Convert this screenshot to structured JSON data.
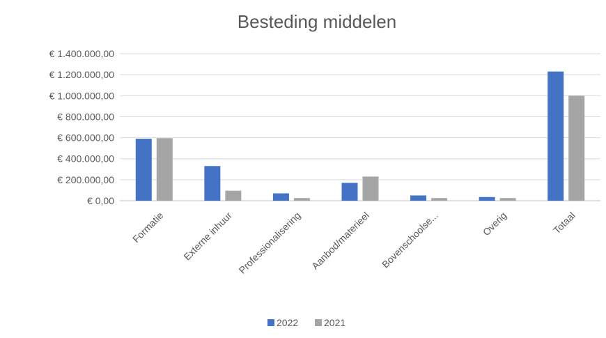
{
  "chart_data": {
    "type": "bar",
    "title": "Besteding middelen",
    "xlabel": "",
    "ylabel": "",
    "categories": [
      "Formatie",
      "Externe inhuur",
      "Professionalisering",
      "Aanbod/materieel",
      "Bovenschoolse...",
      "Overig",
      "Totaal"
    ],
    "series": [
      {
        "name": "2022",
        "color": "#4472c4",
        "values": [
          590000,
          330000,
          70000,
          170000,
          50000,
          35000,
          1230000
        ]
      },
      {
        "name": "2021",
        "color": "#a5a5a5",
        "values": [
          595000,
          95000,
          25000,
          230000,
          25000,
          25000,
          1000000
        ]
      }
    ],
    "ylim": [
      0,
      1400000
    ],
    "yticks": [
      0,
      200000,
      400000,
      600000,
      800000,
      1000000,
      1200000,
      1400000
    ],
    "ytick_labels": [
      "€ 0,00",
      "€ 200.000,00",
      "€ 400.000,00",
      "€ 600.000,00",
      "€ 800.000,00",
      "€ 1.000.000,00",
      "€ 1.200.000,00",
      "€ 1.400.000,00"
    ],
    "grid": true,
    "legend_position": "bottom"
  }
}
